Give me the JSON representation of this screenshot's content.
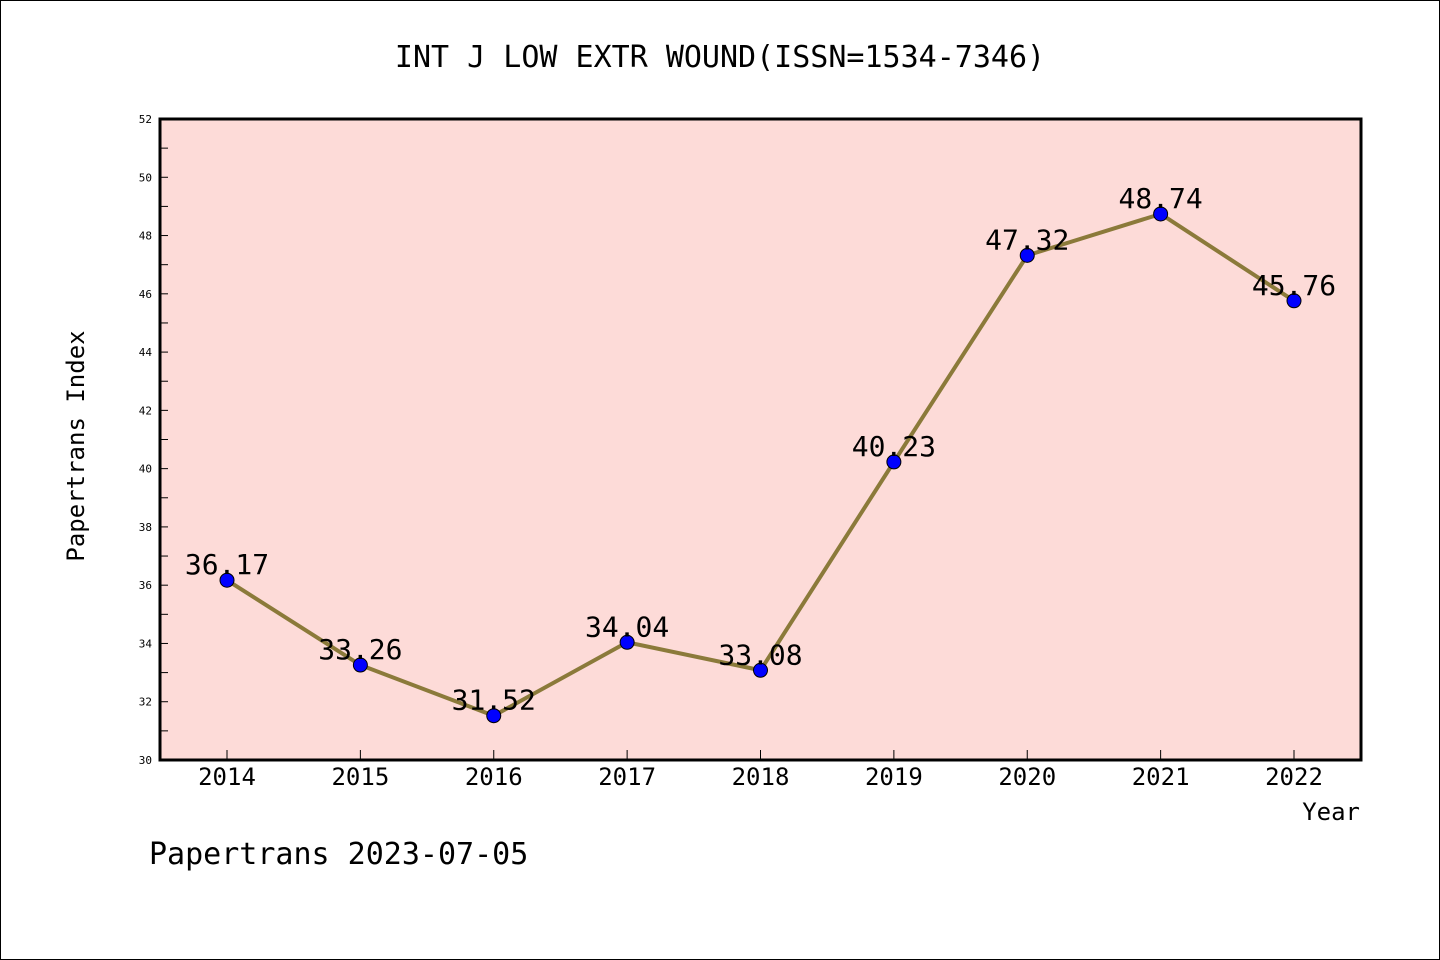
{
  "chart_data": {
    "type": "line",
    "title": "INT J LOW EXTR WOUND(ISSN=1534-7346)",
    "xlabel": "Year",
    "ylabel": "Papertrans Index",
    "x": [
      "2014",
      "2015",
      "2016",
      "2017",
      "2018",
      "2019",
      "2020",
      "2021",
      "2022"
    ],
    "values": [
      36.17,
      33.26,
      31.52,
      34.04,
      33.08,
      40.23,
      47.32,
      48.74,
      45.76
    ],
    "data_labels": [
      "36.17",
      "33.26",
      "31.52",
      "34.04",
      "33.08",
      "40.23",
      "47.32",
      "48.74",
      "45.76"
    ],
    "ylim": [
      30,
      52
    ],
    "yticks": [
      "30",
      "32",
      "34",
      "36",
      "38",
      "40",
      "42",
      "44",
      "46",
      "48",
      "50",
      "52"
    ],
    "grid": false,
    "colors": {
      "plot_background": "#fddbd8",
      "line": "#8b7a3a",
      "marker": "#0000ff"
    }
  },
  "footer": "Papertrans 2023-07-05"
}
